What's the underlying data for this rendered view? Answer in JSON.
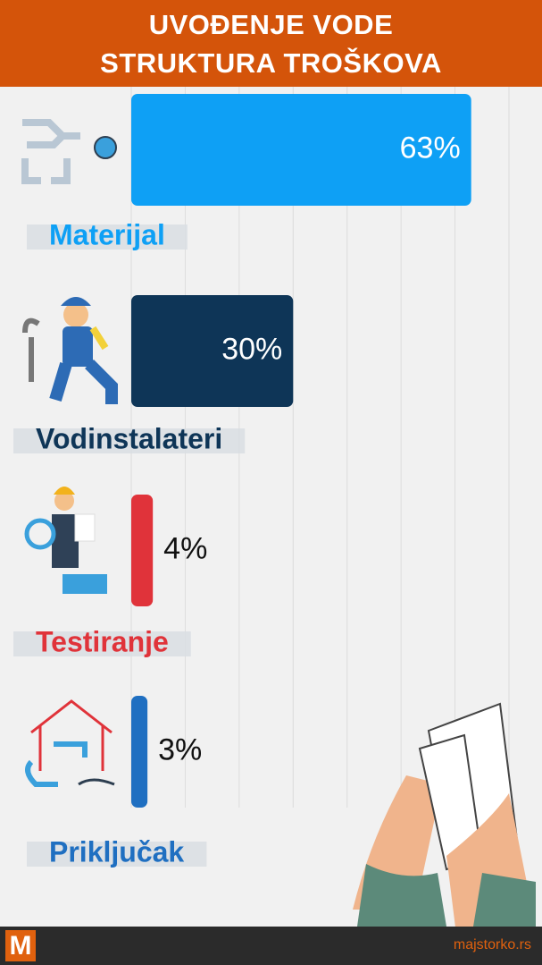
{
  "chart_data": {
    "type": "hbar",
    "title": "UVOĐENJE VODE STRUKTURA TROŠKOVA",
    "categories": [
      "Materijal",
      "Vodinstalateri",
      "Testiranje",
      "Priključak"
    ],
    "values": [
      63,
      30,
      4,
      3
    ],
    "value_labels": [
      "63%",
      "30%",
      "4%",
      "3%"
    ],
    "colors": [
      "#0ea0f5",
      "#0e3557",
      "#e0333a",
      "#1f6fc1"
    ],
    "xlim": [
      0,
      70
    ],
    "xticks": [
      0,
      10,
      20,
      30,
      40,
      50,
      60,
      70
    ],
    "grid": true
  },
  "footer": {
    "logo": "M",
    "site": "majstorko.rs"
  }
}
